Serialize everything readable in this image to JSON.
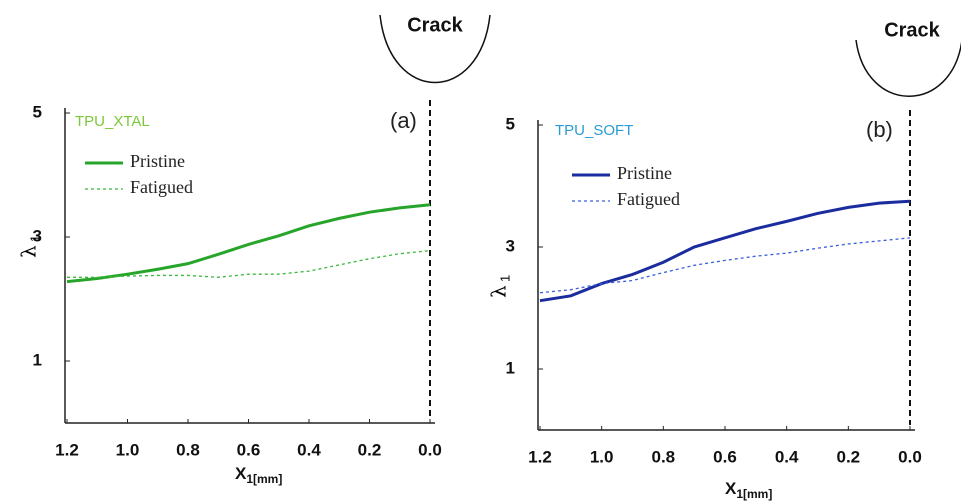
{
  "chart_data": [
    {
      "type": "line",
      "title": "TPU_XTAL",
      "title_color": "#7cc83a",
      "panel_label": "(a)",
      "annotation": "Crack",
      "xlabel": "X",
      "xlabel_sub": "1[mm]",
      "ylabel": "λ",
      "ylabel_sub": "1",
      "x": [
        1.2,
        1.1,
        1.0,
        0.9,
        0.8,
        0.7,
        0.6,
        0.5,
        0.4,
        0.3,
        0.2,
        0.1,
        0.0
      ],
      "series": [
        {
          "name": "Pristine",
          "color": "#27a52a",
          "style": "solid",
          "values": [
            2.28,
            2.33,
            2.4,
            2.48,
            2.57,
            2.72,
            2.88,
            3.02,
            3.18,
            3.3,
            3.4,
            3.47,
            3.52
          ]
        },
        {
          "name": "Fatigued",
          "color": "#3cb83c",
          "style": "dotted",
          "values": [
            2.35,
            2.35,
            2.37,
            2.38,
            2.38,
            2.35,
            2.4,
            2.4,
            2.45,
            2.55,
            2.65,
            2.73,
            2.78
          ]
        }
      ],
      "xlim": [
        1.2,
        0
      ],
      "ylim": [
        0,
        5
      ],
      "xticks": [
        1.2,
        {
          "value": 1,
          "label": "1.0"
        },
        0.8,
        0.6,
        0.4,
        0.2,
        {
          "value": 0,
          "label": "0.0"
        }
      ],
      "yticks": [
        1,
        3,
        5
      ],
      "legend": "upper left"
    },
    {
      "type": "line",
      "title": "TPU_SOFT",
      "title_color": "#2b9bd6",
      "panel_label": "(b)",
      "annotation": "Crack",
      "xlabel": "X",
      "xlabel_sub": "1[mm]",
      "ylabel": "λ",
      "ylabel_sub": "1",
      "x": [
        1.2,
        1.1,
        1.0,
        0.9,
        0.8,
        0.7,
        0.6,
        0.5,
        0.4,
        0.3,
        0.2,
        0.1,
        0.0
      ],
      "series": [
        {
          "name": "Pristine",
          "color": "#1a2c9e",
          "style": "solid",
          "values": [
            2.12,
            2.2,
            2.4,
            2.55,
            2.75,
            3.0,
            3.15,
            3.3,
            3.42,
            3.55,
            3.65,
            3.72,
            3.75
          ]
        },
        {
          "name": "Fatigued",
          "color": "#3a5fe0",
          "style": "dotted",
          "values": [
            2.25,
            2.3,
            2.4,
            2.45,
            2.58,
            2.7,
            2.78,
            2.85,
            2.9,
            2.98,
            3.05,
            3.1,
            3.15
          ]
        }
      ],
      "xlim": [
        1.2,
        0
      ],
      "ylim": [
        0,
        5
      ],
      "xticks": [
        1.2,
        {
          "value": 1,
          "label": "1.0"
        },
        0.8,
        0.6,
        0.4,
        0.2,
        {
          "value": 0,
          "label": "0.0"
        }
      ],
      "yticks": [
        1,
        3,
        5
      ],
      "legend": "upper left"
    }
  ]
}
